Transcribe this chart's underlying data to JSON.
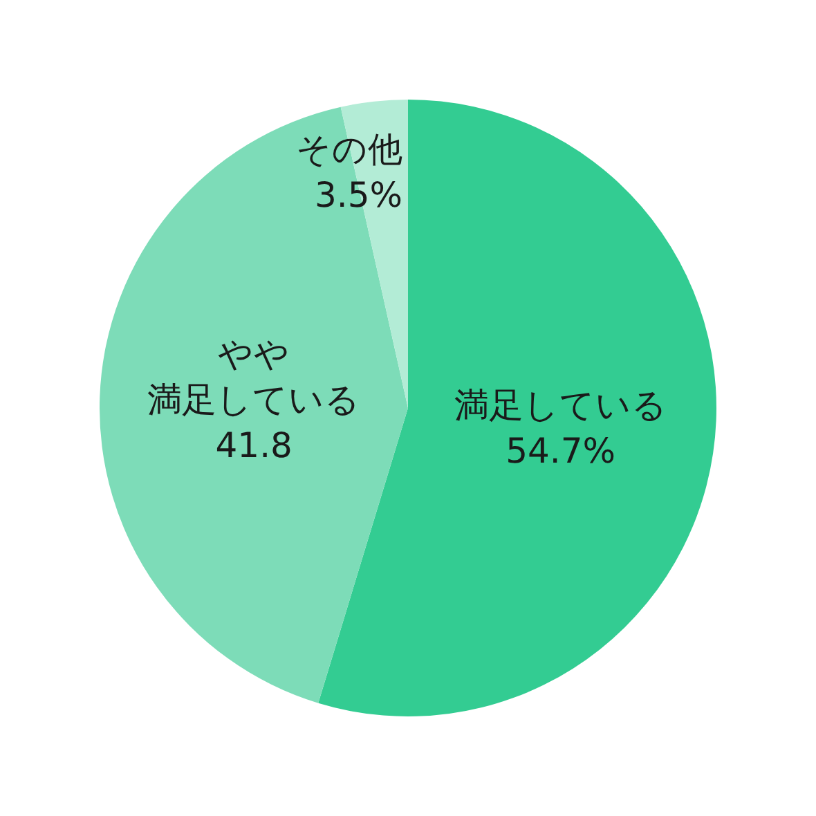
{
  "chart_data": {
    "type": "pie",
    "categories": [
      "満足している",
      "やや満足している",
      "その他"
    ],
    "values": [
      54.7,
      41.8,
      3.5
    ],
    "colors": [
      "#33cc92",
      "#7ddcb8",
      "#b3ecd6"
    ],
    "value_labels": [
      "54.7%",
      "41.8",
      "3.5%"
    ]
  }
}
